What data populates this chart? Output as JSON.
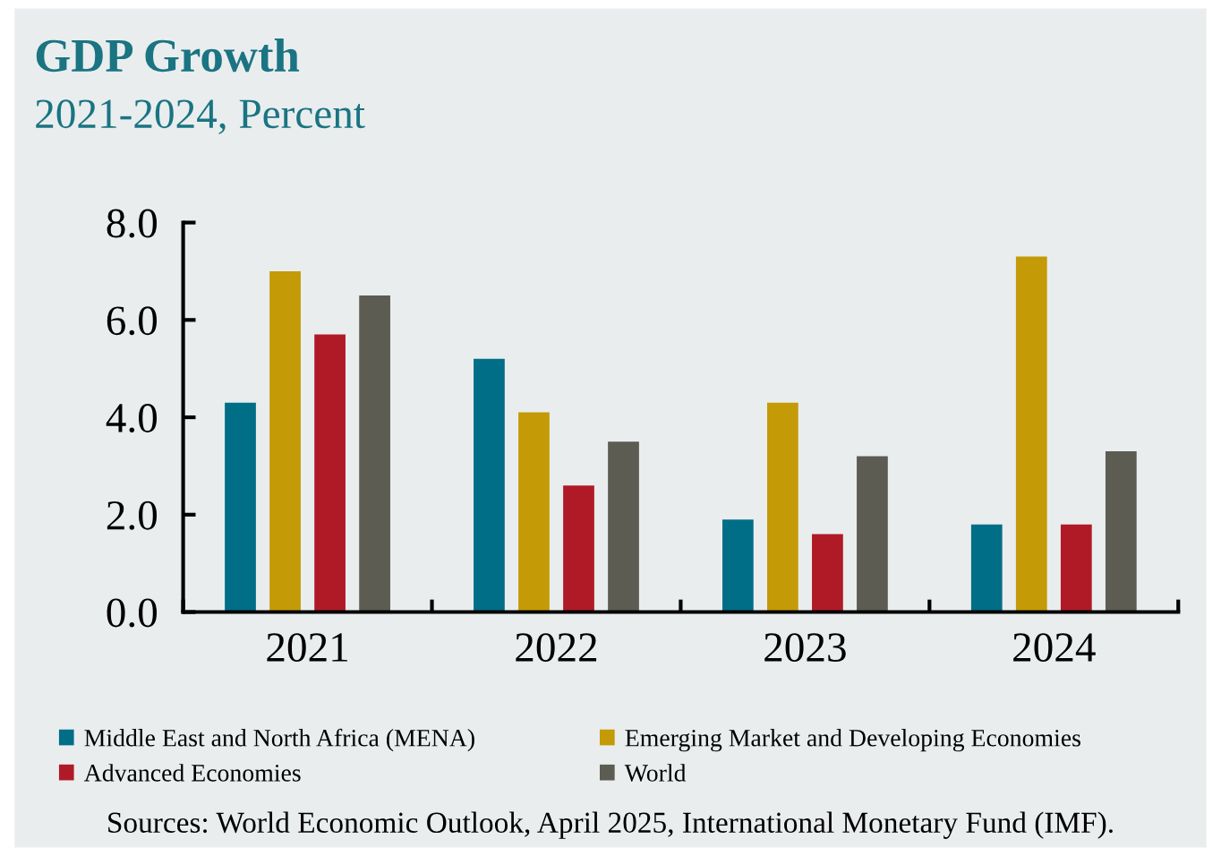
{
  "chart_data": {
    "type": "bar",
    "title": "GDP Growth",
    "subtitle": "2021-2024, Percent",
    "categories": [
      "2021",
      "2022",
      "2023",
      "2024"
    ],
    "series": [
      {
        "name": "Middle East and North Africa (MENA)",
        "color": "#006e87",
        "values": [
          4.3,
          5.2,
          1.9,
          1.8
        ]
      },
      {
        "name": "Emerging Market and Developing Economies",
        "color": "#c49a06",
        "values": [
          7.0,
          4.1,
          4.3,
          7.3
        ]
      },
      {
        "name": "Advanced Economies",
        "color": "#b01a26",
        "values": [
          5.7,
          2.6,
          1.6,
          1.8
        ]
      },
      {
        "name": "World",
        "color": "#5c5c52",
        "values": [
          6.5,
          3.5,
          3.2,
          3.3
        ]
      }
    ],
    "ylim": [
      0,
      8
    ],
    "yticks": [
      {
        "value": 0,
        "label": "0.0"
      },
      {
        "value": 2,
        "label": "2.0"
      },
      {
        "value": 4,
        "label": "4.0"
      },
      {
        "value": 6,
        "label": "6.0"
      },
      {
        "value": 8,
        "label": "8.0"
      }
    ],
    "grid": false,
    "legend": "bottom",
    "annotations": [
      "Sources: World Economic Outlook, April 2025, International Monetary Fund (IMF)."
    ]
  }
}
